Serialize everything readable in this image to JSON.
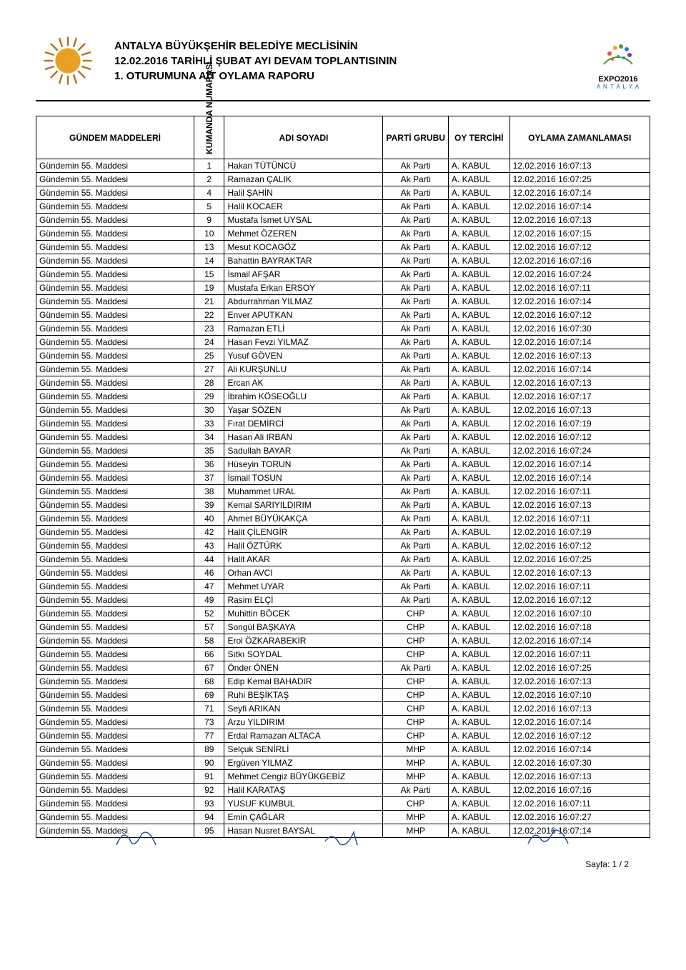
{
  "header": {
    "line1": "ANTALYA BÜYÜKŞEHİR BELEDİYE MECLİSİNİN",
    "line2": "12.02.2016 TARİHLİ ŞUBAT AYI DEVAM TOPLANTISININ",
    "line3": "1. OTURUMUNA AİT OYLAMA RAPORU",
    "expo_label": "EXPO2016",
    "expo_sub": "A N T A L Y A"
  },
  "table": {
    "columns": [
      "GÜNDEM MADDELERİ",
      "KUMANDA NUMARASI",
      "ADI SOYADI",
      "PARTİ GRUBU",
      "OY TERCİHİ",
      "OYLAMA ZAMANLAMASI"
    ],
    "agenda_item": "Gündemin 55. Maddesi",
    "rows": [
      {
        "n": "1",
        "name": "Hakan TÜTÜNCÜ",
        "party": "Ak Parti",
        "vote": "A. KABUL",
        "time": "12.02.2016 16:07:13"
      },
      {
        "n": "2",
        "name": "Ramazan ÇALIK",
        "party": "Ak Parti",
        "vote": "A. KABUL",
        "time": "12.02.2016 16:07:25"
      },
      {
        "n": "4",
        "name": "Halil ŞAHİN",
        "party": "Ak Parti",
        "vote": "A. KABUL",
        "time": "12.02.2016 16:07:14"
      },
      {
        "n": "5",
        "name": "Halil KOCAER",
        "party": "Ak Parti",
        "vote": "A. KABUL",
        "time": "12.02.2016 16:07:14"
      },
      {
        "n": "9",
        "name": "Mustafa İsmet UYSAL",
        "party": "Ak Parti",
        "vote": "A. KABUL",
        "time": "12.02.2016 16:07:13"
      },
      {
        "n": "10",
        "name": "Mehmet ÖZEREN",
        "party": "Ak Parti",
        "vote": "A. KABUL",
        "time": "12.02.2016 16:07:15"
      },
      {
        "n": "13",
        "name": "Mesut KOCAGÖZ",
        "party": "Ak Parti",
        "vote": "A. KABUL",
        "time": "12.02.2016 16:07:12"
      },
      {
        "n": "14",
        "name": "Bahattin BAYRAKTAR",
        "party": "Ak Parti",
        "vote": "A. KABUL",
        "time": "12.02.2016 16:07:16"
      },
      {
        "n": "15",
        "name": "İsmail AFŞAR",
        "party": "Ak Parti",
        "vote": "A. KABUL",
        "time": "12.02.2016 16:07:24"
      },
      {
        "n": "19",
        "name": "Mustafa Erkan ERSOY",
        "party": "Ak Parti",
        "vote": "A. KABUL",
        "time": "12.02.2016 16:07:11"
      },
      {
        "n": "21",
        "name": "Abdurrahman YILMAZ",
        "party": "Ak Parti",
        "vote": "A. KABUL",
        "time": "12.02.2016 16:07:14"
      },
      {
        "n": "22",
        "name": "Enver APUTKAN",
        "party": "Ak Parti",
        "vote": "A. KABUL",
        "time": "12.02.2016 16:07:12"
      },
      {
        "n": "23",
        "name": "Ramazan ETLİ",
        "party": "Ak Parti",
        "vote": "A. KABUL",
        "time": "12.02.2016 16:07:30"
      },
      {
        "n": "24",
        "name": "Hasan Fevzi YILMAZ",
        "party": "Ak Parti",
        "vote": "A. KABUL",
        "time": "12.02.2016 16:07:14"
      },
      {
        "n": "25",
        "name": "Yusuf GÖVEN",
        "party": "Ak Parti",
        "vote": "A. KABUL",
        "time": "12.02.2016 16:07:13"
      },
      {
        "n": "27",
        "name": "Ali KURŞUNLU",
        "party": "Ak Parti",
        "vote": "A. KABUL",
        "time": "12.02.2016 16:07:14"
      },
      {
        "n": "28",
        "name": "Ercan AK",
        "party": "Ak Parti",
        "vote": "A. KABUL",
        "time": "12.02.2016 16:07:13"
      },
      {
        "n": "29",
        "name": "İbrahim KÖSEOĞLU",
        "party": "Ak Parti",
        "vote": "A. KABUL",
        "time": "12.02.2016 16:07:17"
      },
      {
        "n": "30",
        "name": "Yaşar SÖZEN",
        "party": "Ak Parti",
        "vote": "A. KABUL",
        "time": "12.02.2016 16:07:13"
      },
      {
        "n": "33",
        "name": "Fırat DEMİRCİ",
        "party": "Ak Parti",
        "vote": "A. KABUL",
        "time": "12.02.2016 16:07:19"
      },
      {
        "n": "34",
        "name": "Hasan Ali IRBAN",
        "party": "Ak Parti",
        "vote": "A. KABUL",
        "time": "12.02.2016 16:07:12"
      },
      {
        "n": "35",
        "name": "Sadullah BAYAR",
        "party": "Ak Parti",
        "vote": "A. KABUL",
        "time": "12.02.2016 16:07:24"
      },
      {
        "n": "36",
        "name": "Hüseyin TORUN",
        "party": "Ak Parti",
        "vote": "A. KABUL",
        "time": "12.02.2016 16:07:14"
      },
      {
        "n": "37",
        "name": "İsmail TOSUN",
        "party": "Ak Parti",
        "vote": "A. KABUL",
        "time": "12.02.2016 16:07:14"
      },
      {
        "n": "38",
        "name": "Muhammet URAL",
        "party": "Ak Parti",
        "vote": "A. KABUL",
        "time": "12.02.2016 16:07:11"
      },
      {
        "n": "39",
        "name": "Kemal SARIYILDIRIM",
        "party": "Ak Parti",
        "vote": "A. KABUL",
        "time": "12.02.2016 16:07:13"
      },
      {
        "n": "40",
        "name": "Ahmet BÜYÜKAKÇA",
        "party": "Ak Parti",
        "vote": "A. KABUL",
        "time": "12.02.2016 16:07:11"
      },
      {
        "n": "42",
        "name": "Halit ÇİLENGİR",
        "party": "Ak Parti",
        "vote": "A. KABUL",
        "time": "12.02.2016 16:07:19"
      },
      {
        "n": "43",
        "name": "Halil ÖZTÜRK",
        "party": "Ak Parti",
        "vote": "A. KABUL",
        "time": "12.02.2016 16:07:12"
      },
      {
        "n": "44",
        "name": "Halit AKAR",
        "party": "Ak Parti",
        "vote": "A. KABUL",
        "time": "12.02.2016 16:07:25"
      },
      {
        "n": "46",
        "name": "Orhan AVCI",
        "party": "Ak Parti",
        "vote": "A. KABUL",
        "time": "12.02.2016 16:07:13"
      },
      {
        "n": "47",
        "name": "Mehmet UYAR",
        "party": "Ak Parti",
        "vote": "A. KABUL",
        "time": "12.02.2016 16:07:11"
      },
      {
        "n": "49",
        "name": "Rasim ELÇİ",
        "party": "Ak Parti",
        "vote": "A. KABUL",
        "time": "12.02.2016 16:07:12"
      },
      {
        "n": "52",
        "name": "Muhittin BÖCEK",
        "party": "CHP",
        "vote": "A. KABUL",
        "time": "12.02.2016 16:07:10"
      },
      {
        "n": "57",
        "name": "Songül BAŞKAYA",
        "party": "CHP",
        "vote": "A. KABUL",
        "time": "12.02.2016 16:07:18"
      },
      {
        "n": "58",
        "name": "Erol ÖZKARABEKİR",
        "party": "CHP",
        "vote": "A. KABUL",
        "time": "12.02.2016 16:07:14"
      },
      {
        "n": "66",
        "name": "Sıtkı SOYDAL",
        "party": "CHP",
        "vote": "A. KABUL",
        "time": "12.02.2016 16:07:11"
      },
      {
        "n": "67",
        "name": "Önder ÖNEN",
        "party": "Ak Parti",
        "vote": "A. KABUL",
        "time": "12.02.2016 16:07:25"
      },
      {
        "n": "68",
        "name": "Edip Kemal BAHADIR",
        "party": "CHP",
        "vote": "A. KABUL",
        "time": "12.02.2016 16:07:13"
      },
      {
        "n": "69",
        "name": "Ruhi BEŞİKTAŞ",
        "party": "CHP",
        "vote": "A. KABUL",
        "time": "12.02.2016 16:07:10"
      },
      {
        "n": "71",
        "name": "Seyfi ARIKAN",
        "party": "CHP",
        "vote": "A. KABUL",
        "time": "12.02.2016 16:07:13"
      },
      {
        "n": "73",
        "name": "Arzu YILDIRIM",
        "party": "CHP",
        "vote": "A. KABUL",
        "time": "12.02.2016 16:07:14"
      },
      {
        "n": "77",
        "name": "Erdal Ramazan ALTACA",
        "party": "CHP",
        "vote": "A. KABUL",
        "time": "12.02.2016 16:07:12"
      },
      {
        "n": "89",
        "name": "Selçuk SENİRLİ",
        "party": "MHP",
        "vote": "A. KABUL",
        "time": "12.02.2016 16:07:14"
      },
      {
        "n": "90",
        "name": "Ergüven YILMAZ",
        "party": "MHP",
        "vote": "A. KABUL",
        "time": "12.02.2016 16:07:30"
      },
      {
        "n": "91",
        "name": "Mehmet Cengiz BÜYÜKGEBİZ",
        "party": "MHP",
        "vote": "A. KABUL",
        "time": "12.02.2016 16:07:13"
      },
      {
        "n": "92",
        "name": "Halil KARATAŞ",
        "party": "Ak Parti",
        "vote": "A. KABUL",
        "time": "12.02.2016 16:07:16"
      },
      {
        "n": "93",
        "name": "YUSUF KUMBUL",
        "party": "CHP",
        "vote": "A. KABUL",
        "time": "12.02.2016 16:07:11"
      },
      {
        "n": "94",
        "name": "Emin ÇAĞLAR",
        "party": "MHP",
        "vote": "A. KABUL",
        "time": "12.02.2016 16:07:27"
      },
      {
        "n": "95",
        "name": "Hasan Nusret BAYSAL",
        "party": "MHP",
        "vote": "A. KABUL",
        "time": "12.02.2016 16:07:14"
      }
    ]
  },
  "footer": {
    "page": "Sayfa: 1 / 2"
  },
  "styling": {
    "font_family": "Arial",
    "header_fontsize_pt": 15,
    "body_fontsize_pt": 12,
    "border_color": "#000000",
    "background": "#ffffff",
    "logo_sun_fill": "#e8a024",
    "expo_arc_green": "#4a9e3a",
    "expo_dots": [
      "#e8534a",
      "#f1a62e",
      "#4a9e3a",
      "#2e7bc0",
      "#7b3aa0"
    ]
  }
}
